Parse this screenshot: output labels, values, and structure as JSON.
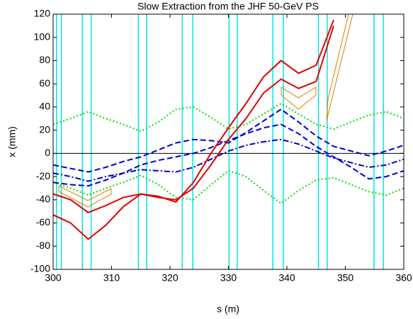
{
  "chart_data": {
    "type": "line",
    "title": "Slow Extraction from the JHF 50-GeV PS",
    "xlabel": "s  (m)",
    "ylabel": "x  (mm)",
    "x": [
      300,
      303,
      306,
      309,
      312,
      315,
      318,
      321,
      324,
      327,
      330,
      333,
      336,
      339,
      342,
      345,
      348,
      351,
      354,
      357,
      360
    ],
    "series": [
      {
        "color": "#00dd00",
        "dash": "dotted",
        "values": [
          25,
          30,
          36,
          30,
          25,
          19,
          27,
          38,
          40,
          31,
          21,
          25,
          34,
          43,
          34,
          25,
          21,
          27,
          33,
          36,
          30
        ]
      },
      {
        "color": "#00dd00",
        "dash": "dotted",
        "values": [
          -25,
          -30,
          -36,
          -30,
          -25,
          -19,
          -27,
          -38,
          -40,
          -27,
          -15,
          -20,
          -32,
          -43,
          -32,
          -23,
          -21,
          -27,
          -33,
          -36,
          -30
        ]
      },
      {
        "color": "#0000cc",
        "dash": "dashed",
        "values": [
          -10,
          -13,
          -16,
          -12,
          -7,
          -3,
          3,
          9,
          12,
          11,
          9,
          18,
          28,
          38,
          27,
          15,
          6,
          2,
          -2,
          2,
          7
        ]
      },
      {
        "color": "#0000cc",
        "dash": "dashed",
        "values": [
          -25,
          -27,
          -28,
          -23,
          -17,
          -10,
          -6,
          -3,
          0,
          5,
          11,
          17,
          22,
          25,
          17,
          6,
          -3,
          -12,
          -22,
          -20,
          -15
        ]
      },
      {
        "color": "#0000cc",
        "dash": "dashdot",
        "values": [
          -17,
          -20,
          -24,
          -20,
          -17,
          -14,
          -15,
          -16,
          -12,
          -5,
          2,
          7,
          10,
          12,
          8,
          2,
          -4,
          -8,
          -12,
          -10,
          -5
        ]
      },
      {
        "color": "#e00000",
        "dash": "solid",
        "values": [
          -53,
          -60,
          -74,
          -62,
          -46,
          -35,
          -37,
          -42,
          -25,
          0,
          22,
          43,
          66,
          80,
          69,
          76,
          115,
          null,
          null,
          null,
          null
        ]
      },
      {
        "color": "#e00000",
        "dash": "solid",
        "values": [
          -35,
          -40,
          -51,
          -45,
          -38,
          -35,
          -38,
          -40,
          -30,
          -10,
          12,
          30,
          52,
          64,
          56,
          62,
          110,
          null,
          null,
          null,
          null
        ]
      }
    ],
    "vlines": [
      300.6,
      301.4,
      305,
      306.5,
      314.6,
      316,
      322.1,
      323.9,
      330.1,
      331.5,
      337.6,
      339.4,
      345.4,
      346.9,
      354.9,
      356.5
    ],
    "vline_color": "#00e5e5",
    "xlim": [
      300,
      360
    ],
    "xticks": [
      300,
      310,
      320,
      330,
      340,
      350,
      360
    ],
    "ylim": [
      -100,
      120
    ],
    "yticks": [
      -100,
      -80,
      -60,
      -40,
      -20,
      0,
      20,
      40,
      60,
      80,
      100,
      120
    ]
  }
}
